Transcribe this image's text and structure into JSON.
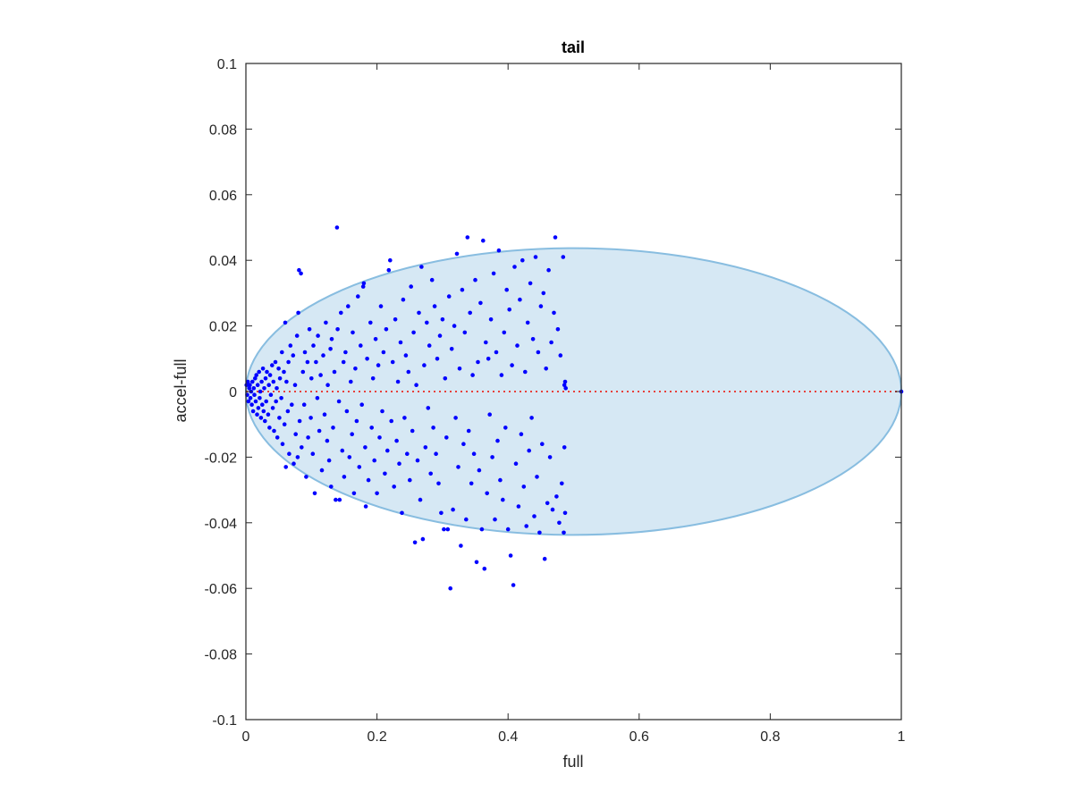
{
  "chart_data": {
    "type": "scatter",
    "title": "tail",
    "xlabel": "full",
    "ylabel": "accel-full",
    "xlim": [
      0,
      1
    ],
    "ylim": [
      -0.1,
      0.1
    ],
    "xticks": [
      0,
      0.2,
      0.4,
      0.6,
      0.8,
      1
    ],
    "xtick_labels": [
      "0",
      "0.2",
      "0.4",
      "0.6",
      "0.8",
      "1"
    ],
    "yticks": [
      -0.1,
      -0.08,
      -0.06,
      -0.04,
      -0.02,
      0,
      0.02,
      0.04,
      0.06,
      0.08,
      0.1
    ],
    "ytick_labels": [
      "-0.1",
      "-0.08",
      "-0.06",
      "-0.04",
      "-0.02",
      "0",
      "0.02",
      "0.04",
      "0.06",
      "0.08",
      "0.1"
    ],
    "grid": false,
    "colors": {
      "points": "#0000ff",
      "region_fill": "#d6e8f4",
      "region_edge": "#88bde0",
      "reference_line": "#e8403a"
    },
    "shaded_region": {
      "shape": "ellipse",
      "center": [
        0.5,
        0
      ],
      "x_semi_axis": 0.5,
      "y_semi_axis": 0.0437
    },
    "reference_line": {
      "y": 0,
      "x_range": [
        0,
        1
      ],
      "style": "dotted"
    },
    "series": [
      {
        "points": [
          [
            0.001,
            0.002
          ],
          [
            0.002,
            -0.001
          ],
          [
            0.003,
            0.003
          ],
          [
            0.004,
            -0.003
          ],
          [
            0.005,
            0.001
          ],
          [
            0.006,
            0.002
          ],
          [
            0.007,
            -0.002
          ],
          [
            0.008,
            0.0
          ],
          [
            0.009,
            -0.004
          ],
          [
            0.01,
            0.003
          ],
          [
            0.011,
            -0.006
          ],
          [
            0.012,
            0.001
          ],
          [
            0.013,
            -0.001
          ],
          [
            0.014,
            0.004
          ],
          [
            0.015,
            -0.003
          ],
          [
            0.016,
            0.005
          ],
          [
            0.017,
            -0.007
          ],
          [
            0.018,
            0.002
          ],
          [
            0.019,
            -0.005
          ],
          [
            0.02,
            0.006
          ],
          [
            0.021,
            -0.002
          ],
          [
            0.022,
            0.0
          ],
          [
            0.023,
            -0.008
          ],
          [
            0.024,
            0.003
          ],
          [
            0.025,
            -0.004
          ],
          [
            0.026,
            0.007
          ],
          [
            0.027,
            -0.006
          ],
          [
            0.028,
            0.001
          ],
          [
            0.029,
            -0.009
          ],
          [
            0.03,
            0.004
          ],
          [
            0.031,
            -0.003
          ],
          [
            0.032,
            0.006
          ],
          [
            0.034,
            -0.007
          ],
          [
            0.035,
            0.002
          ],
          [
            0.036,
            -0.011
          ],
          [
            0.037,
            0.005
          ],
          [
            0.038,
            -0.001
          ],
          [
            0.04,
            0.008
          ],
          [
            0.041,
            -0.005
          ],
          [
            0.042,
            0.003
          ],
          [
            0.043,
            -0.012
          ],
          [
            0.045,
            0.009
          ],
          [
            0.046,
            -0.003
          ],
          [
            0.047,
            0.001
          ],
          [
            0.048,
            -0.014
          ],
          [
            0.05,
            0.007
          ],
          [
            0.051,
            -0.008
          ],
          [
            0.052,
            0.004
          ],
          [
            0.054,
            -0.002
          ],
          [
            0.055,
            0.012
          ],
          [
            0.056,
            -0.016
          ],
          [
            0.058,
            0.006
          ],
          [
            0.059,
            -0.01
          ],
          [
            0.06,
            0.021
          ],
          [
            0.061,
            -0.023
          ],
          [
            0.062,
            0.003
          ],
          [
            0.064,
            -0.006
          ],
          [
            0.065,
            0.009
          ],
          [
            0.066,
            -0.019
          ],
          [
            0.068,
            0.014
          ],
          [
            0.07,
            -0.004
          ],
          [
            0.072,
            0.011
          ],
          [
            0.073,
            -0.022
          ],
          [
            0.075,
            0.002
          ],
          [
            0.076,
            -0.013
          ],
          [
            0.078,
            0.017
          ],
          [
            0.079,
            -0.02
          ],
          [
            0.08,
            0.024
          ],
          [
            0.081,
            0.037
          ],
          [
            0.082,
            -0.009
          ],
          [
            0.084,
            0.036
          ],
          [
            0.085,
            -0.017
          ],
          [
            0.087,
            0.006
          ],
          [
            0.089,
            -0.004
          ],
          [
            0.09,
            0.012
          ],
          [
            0.092,
            -0.026
          ],
          [
            0.094,
            0.009
          ],
          [
            0.095,
            -0.014
          ],
          [
            0.097,
            0.019
          ],
          [
            0.099,
            -0.008
          ],
          [
            0.1,
            0.004
          ],
          [
            0.102,
            -0.019
          ],
          [
            0.103,
            0.014
          ],
          [
            0.105,
            -0.031
          ],
          [
            0.107,
            0.009
          ],
          [
            0.109,
            -0.002
          ],
          [
            0.11,
            0.017
          ],
          [
            0.112,
            -0.012
          ],
          [
            0.114,
            0.005
          ],
          [
            0.116,
            -0.024
          ],
          [
            0.118,
            0.011
          ],
          [
            0.12,
            -0.007
          ],
          [
            0.122,
            0.021
          ],
          [
            0.124,
            -0.015
          ],
          [
            0.125,
            0.002
          ],
          [
            0.127,
            -0.021
          ],
          [
            0.129,
            0.013
          ],
          [
            0.13,
            -0.029
          ],
          [
            0.131,
            0.016
          ],
          [
            0.133,
            -0.011
          ],
          [
            0.135,
            0.006
          ],
          [
            0.137,
            -0.033
          ],
          [
            0.139,
            0.05
          ],
          [
            0.14,
            0.019
          ],
          [
            0.142,
            -0.003
          ],
          [
            0.143,
            -0.033
          ],
          [
            0.145,
            0.024
          ],
          [
            0.147,
            -0.018
          ],
          [
            0.149,
            0.009
          ],
          [
            0.15,
            -0.026
          ],
          [
            0.152,
            0.012
          ],
          [
            0.154,
            -0.006
          ],
          [
            0.156,
            0.026
          ],
          [
            0.158,
            -0.02
          ],
          [
            0.16,
            0.003
          ],
          [
            0.162,
            -0.013
          ],
          [
            0.163,
            0.018
          ],
          [
            0.165,
            -0.031
          ],
          [
            0.167,
            0.007
          ],
          [
            0.169,
            -0.009
          ],
          [
            0.171,
            0.029
          ],
          [
            0.173,
            -0.023
          ],
          [
            0.175,
            0.014
          ],
          [
            0.177,
            -0.004
          ],
          [
            0.179,
            0.032
          ],
          [
            0.18,
            0.033
          ],
          [
            0.182,
            -0.017
          ],
          [
            0.183,
            -0.035
          ],
          [
            0.185,
            0.01
          ],
          [
            0.187,
            -0.027
          ],
          [
            0.19,
            0.021
          ],
          [
            0.192,
            -0.011
          ],
          [
            0.194,
            0.004
          ],
          [
            0.196,
            -0.021
          ],
          [
            0.198,
            0.016
          ],
          [
            0.2,
            -0.031
          ],
          [
            0.202,
            0.008
          ],
          [
            0.204,
            -0.014
          ],
          [
            0.206,
            0.026
          ],
          [
            0.208,
            -0.006
          ],
          [
            0.21,
            0.012
          ],
          [
            0.212,
            -0.025
          ],
          [
            0.214,
            0.019
          ],
          [
            0.216,
            -0.018
          ],
          [
            0.218,
            0.037
          ],
          [
            0.22,
            0.04
          ],
          [
            0.222,
            -0.009
          ],
          [
            0.224,
            0.009
          ],
          [
            0.226,
            -0.029
          ],
          [
            0.228,
            0.022
          ],
          [
            0.23,
            -0.015
          ],
          [
            0.232,
            0.003
          ],
          [
            0.234,
            -0.022
          ],
          [
            0.236,
            0.015
          ],
          [
            0.238,
            -0.037
          ],
          [
            0.24,
            0.028
          ],
          [
            0.242,
            -0.008
          ],
          [
            0.244,
            0.011
          ],
          [
            0.246,
            -0.019
          ],
          [
            0.248,
            0.006
          ],
          [
            0.25,
            -0.027
          ],
          [
            0.252,
            0.032
          ],
          [
            0.254,
            -0.012
          ],
          [
            0.256,
            0.018
          ],
          [
            0.258,
            -0.046
          ],
          [
            0.26,
            0.002
          ],
          [
            0.262,
            -0.021
          ],
          [
            0.264,
            0.024
          ],
          [
            0.266,
            -0.033
          ],
          [
            0.268,
            0.038
          ],
          [
            0.27,
            -0.045
          ],
          [
            0.272,
            0.008
          ],
          [
            0.274,
            -0.017
          ],
          [
            0.276,
            0.021
          ],
          [
            0.278,
            -0.005
          ],
          [
            0.28,
            0.014
          ],
          [
            0.282,
            -0.025
          ],
          [
            0.284,
            0.034
          ],
          [
            0.286,
            -0.011
          ],
          [
            0.288,
            0.026
          ],
          [
            0.29,
            -0.019
          ],
          [
            0.292,
            0.01
          ],
          [
            0.294,
            -0.028
          ],
          [
            0.296,
            0.017
          ],
          [
            0.298,
            -0.037
          ],
          [
            0.3,
            0.022
          ],
          [
            0.302,
            -0.042
          ],
          [
            0.304,
            0.004
          ],
          [
            0.306,
            -0.014
          ],
          [
            0.308,
            -0.042
          ],
          [
            0.31,
            0.029
          ],
          [
            0.312,
            -0.06
          ],
          [
            0.314,
            0.013
          ],
          [
            0.316,
            -0.036
          ],
          [
            0.318,
            0.02
          ],
          [
            0.32,
            -0.008
          ],
          [
            0.322,
            0.042
          ],
          [
            0.324,
            -0.023
          ],
          [
            0.326,
            0.007
          ],
          [
            0.328,
            -0.047
          ],
          [
            0.33,
            0.031
          ],
          [
            0.332,
            -0.016
          ],
          [
            0.334,
            0.018
          ],
          [
            0.336,
            -0.039
          ],
          [
            0.338,
            0.047
          ],
          [
            0.34,
            -0.012
          ],
          [
            0.342,
            0.024
          ],
          [
            0.344,
            -0.028
          ],
          [
            0.346,
            0.005
          ],
          [
            0.348,
            -0.019
          ],
          [
            0.35,
            0.034
          ],
          [
            0.352,
            -0.052
          ],
          [
            0.354,
            0.009
          ],
          [
            0.356,
            -0.024
          ],
          [
            0.358,
            0.027
          ],
          [
            0.36,
            -0.042
          ],
          [
            0.362,
            0.046
          ],
          [
            0.364,
            -0.054
          ],
          [
            0.366,
            0.015
          ],
          [
            0.368,
            -0.031
          ],
          [
            0.37,
            0.01
          ],
          [
            0.372,
            -0.007
          ],
          [
            0.374,
            0.022
          ],
          [
            0.376,
            -0.02
          ],
          [
            0.378,
            0.036
          ],
          [
            0.38,
            -0.039
          ],
          [
            0.382,
            0.012
          ],
          [
            0.384,
            -0.015
          ],
          [
            0.386,
            0.043
          ],
          [
            0.388,
            -0.027
          ],
          [
            0.39,
            0.005
          ],
          [
            0.392,
            -0.033
          ],
          [
            0.394,
            0.018
          ],
          [
            0.396,
            -0.011
          ],
          [
            0.398,
            0.031
          ],
          [
            0.4,
            -0.042
          ],
          [
            0.402,
            0.025
          ],
          [
            0.404,
            -0.05
          ],
          [
            0.406,
            0.008
          ],
          [
            0.408,
            -0.059
          ],
          [
            0.41,
            0.038
          ],
          [
            0.412,
            -0.022
          ],
          [
            0.414,
            0.014
          ],
          [
            0.416,
            -0.035
          ],
          [
            0.418,
            0.028
          ],
          [
            0.42,
            -0.013
          ],
          [
            0.422,
            0.04
          ],
          [
            0.424,
            -0.029
          ],
          [
            0.426,
            0.006
          ],
          [
            0.428,
            -0.041
          ],
          [
            0.43,
            0.021
          ],
          [
            0.432,
            -0.018
          ],
          [
            0.434,
            0.033
          ],
          [
            0.436,
            -0.008
          ],
          [
            0.438,
            0.016
          ],
          [
            0.44,
            -0.038
          ],
          [
            0.442,
            0.041
          ],
          [
            0.444,
            -0.026
          ],
          [
            0.446,
            0.012
          ],
          [
            0.448,
            -0.043
          ],
          [
            0.45,
            0.026
          ],
          [
            0.452,
            -0.016
          ],
          [
            0.454,
            0.03
          ],
          [
            0.456,
            -0.051
          ],
          [
            0.458,
            0.007
          ],
          [
            0.46,
            -0.034
          ],
          [
            0.462,
            0.037
          ],
          [
            0.464,
            -0.02
          ],
          [
            0.466,
            0.015
          ],
          [
            0.468,
            -0.036
          ],
          [
            0.47,
            0.024
          ],
          [
            0.472,
            0.047
          ],
          [
            0.474,
            -0.032
          ],
          [
            0.476,
            0.019
          ],
          [
            0.478,
            -0.04
          ],
          [
            0.48,
            0.011
          ],
          [
            0.482,
            -0.028
          ],
          [
            0.484,
            0.041
          ],
          [
            0.485,
            -0.043
          ],
          [
            0.486,
            0.002
          ],
          [
            0.486,
            -0.017
          ],
          [
            0.487,
            0.003
          ],
          [
            0.487,
            -0.037
          ],
          [
            0.488,
            0.001
          ]
        ]
      },
      {
        "points": [
          [
            1.0,
            0.0
          ]
        ]
      }
    ]
  }
}
